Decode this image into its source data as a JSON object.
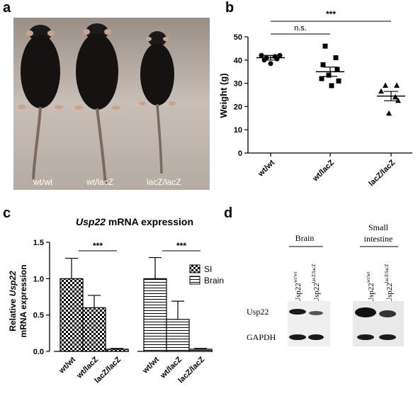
{
  "panels": {
    "a": {
      "letter": "a",
      "labels": [
        "wt/wt",
        "wt/lacZ",
        "lacZ/lacZ"
      ]
    },
    "b": {
      "letter": "b"
    },
    "c": {
      "letter": "c"
    },
    "d": {
      "letter": "d"
    }
  },
  "chart_data": [
    {
      "id": "b",
      "type": "scatter",
      "title": "",
      "ylabel": "Weight (g)",
      "ylim": [
        0,
        50
      ],
      "yticks": [
        0,
        10,
        20,
        30,
        40,
        50
      ],
      "categories": [
        "wt/wt",
        "wt/lacZ",
        "lacZ/lacZ"
      ],
      "groups": [
        {
          "category": "wt/wt",
          "marker": "circle",
          "points": [
            42,
            42,
            41.5,
            41,
            40.5,
            40,
            38.5
          ],
          "mean": 41,
          "sem": 1
        },
        {
          "category": "wt/lacZ",
          "marker": "square",
          "points": [
            46,
            41,
            38,
            36,
            33.5,
            32,
            31,
            29
          ],
          "mean": 35,
          "sem": 2
        },
        {
          "category": "lacZ/lacZ",
          "marker": "triangle",
          "points": [
            29,
            29,
            26.5,
            24,
            22.5,
            17
          ],
          "mean": 24.5,
          "sem": 2
        }
      ],
      "significance": [
        {
          "from": "wt/wt",
          "to": "wt/lacZ",
          "label": "n.s."
        },
        {
          "from": "wt/wt",
          "to": "lacZ/lacZ",
          "label": "***"
        }
      ],
      "grid": false
    },
    {
      "id": "c",
      "type": "bar",
      "title": "Usp22 mRNA expression",
      "title_italic": "Usp22",
      "title_rest": " mRNA expression",
      "ylabel_line1_pre": "Relative ",
      "ylabel_line1_italic": "Usp22",
      "ylabel_line2": "mRNA expression",
      "ylim": [
        0,
        1.5
      ],
      "yticks": [
        "0.0",
        "0.5",
        "1.0",
        "1.5"
      ],
      "categories": [
        "wt/wt",
        "wt/lacZ",
        "lacZ/lacZ"
      ],
      "series": [
        {
          "name": "SI",
          "pattern": "checker",
          "values": [
            1.0,
            0.6,
            0.03
          ],
          "errors": [
            0.28,
            0.17,
            0.01
          ]
        },
        {
          "name": "Brain",
          "pattern": "hlines",
          "values": [
            1.0,
            0.44,
            0.03
          ],
          "errors": [
            0.29,
            0.25,
            0.01
          ]
        }
      ],
      "significance_label": "***",
      "legend_position": "right"
    }
  ],
  "blot": {
    "tissues": [
      {
        "name": "Brain",
        "lanes": [
          "wt/wt",
          "lacZ/lacZ"
        ]
      },
      {
        "name_line1": "Small",
        "name_line2": "intestine",
        "lanes": [
          "wt/wt",
          "lacZ/lacZ"
        ]
      }
    ],
    "lane_label_base": "Usp22",
    "rows": [
      "Usp22",
      "GAPDH"
    ]
  }
}
